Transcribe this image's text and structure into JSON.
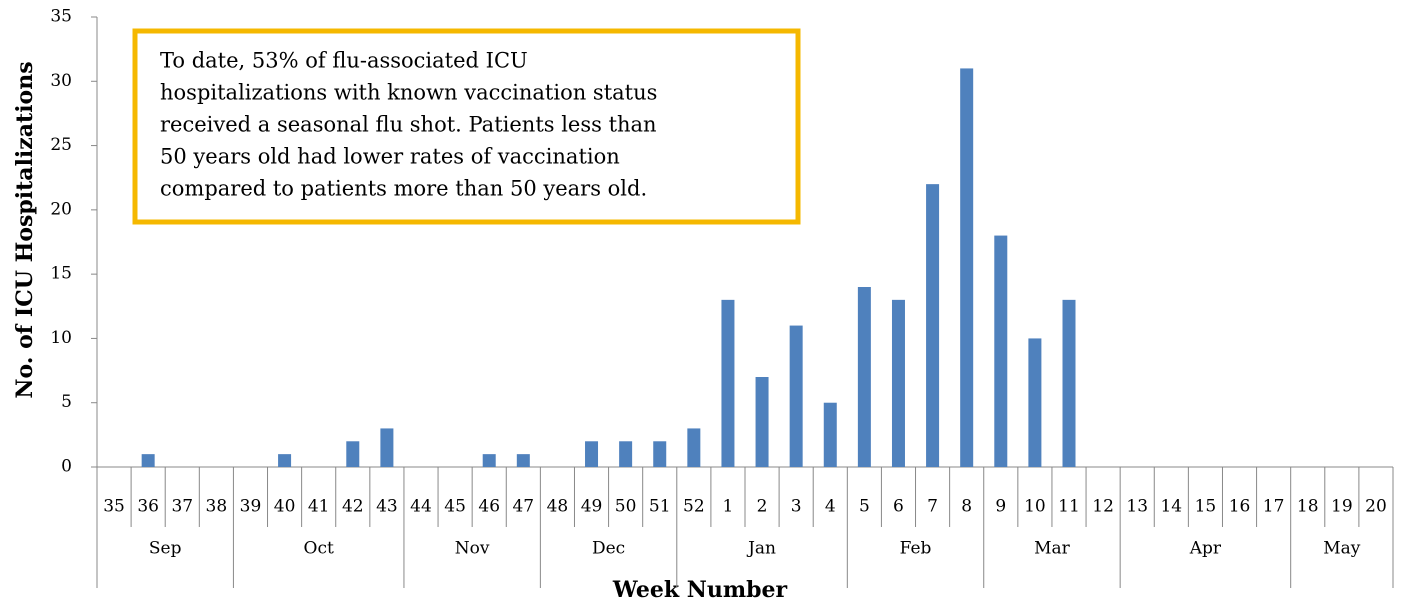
{
  "chart_data": {
    "type": "bar",
    "x_title": "Week Number",
    "y_title": "No. of ICU Hospitalizations",
    "annotation": [
      "To date, 53% of flu-associated ICU",
      "hospitalizations with known vaccination status",
      "received a seasonal flu shot. Patients less than",
      "50 years old had lower rates of vaccination",
      "compared to patients more than 50 years old."
    ],
    "categories": [
      "35",
      "36",
      "37",
      "38",
      "39",
      "40",
      "41",
      "42",
      "43",
      "44",
      "45",
      "46",
      "47",
      "48",
      "49",
      "50",
      "51",
      "52",
      "1",
      "2",
      "3",
      "4",
      "5",
      "6",
      "7",
      "8",
      "9",
      "10",
      "11",
      "12",
      "13",
      "14",
      "15",
      "16",
      "17",
      "18",
      "19",
      "20"
    ],
    "values": [
      0,
      1,
      0,
      0,
      0,
      1,
      0,
      2,
      3,
      0,
      0,
      1,
      1,
      0,
      2,
      2,
      2,
      3,
      13,
      7,
      11,
      5,
      14,
      13,
      22,
      31,
      18,
      10,
      13,
      null,
      null,
      null,
      null,
      null,
      null,
      null,
      null,
      null
    ],
    "x_groups": [
      {
        "label": "Sep",
        "span": 4
      },
      {
        "label": "Oct",
        "span": 5
      },
      {
        "label": "Nov",
        "span": 4
      },
      {
        "label": "Dec",
        "span": 4
      },
      {
        "label": "Jan",
        "span": 5
      },
      {
        "label": "Feb",
        "span": 4
      },
      {
        "label": "Mar",
        "span": 4
      },
      {
        "label": "Apr",
        "span": 5
      },
      {
        "label": "May",
        "span": 3
      }
    ],
    "color": "#4f81bd",
    "ylim": [
      0,
      35
    ],
    "yticks": [
      0,
      5,
      10,
      15,
      20,
      25,
      30,
      35
    ],
    "grid": false
  }
}
